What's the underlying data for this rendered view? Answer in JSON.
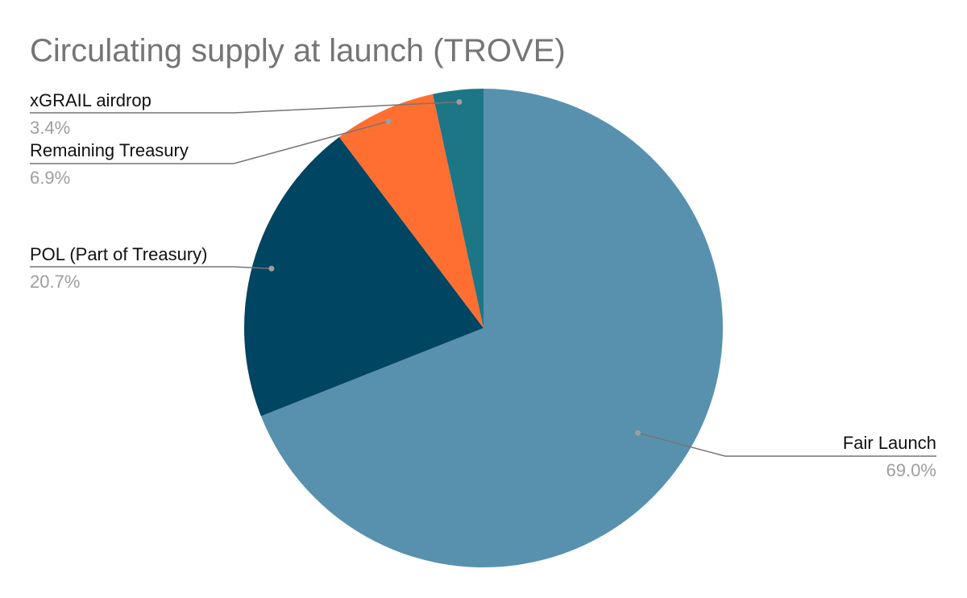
{
  "chart_data": {
    "type": "pie",
    "title": "Circulating supply at launch (TROVE)",
    "slices": [
      {
        "label": "Fair Launch",
        "value": 69.0,
        "pct_label": "69.0%",
        "color": "#5891AD"
      },
      {
        "label": "POL (Part of Treasury)",
        "value": 20.7,
        "pct_label": "20.7%",
        "color": "#004561"
      },
      {
        "label": "Remaining Treasury",
        "value": 6.9,
        "pct_label": "6.9%",
        "color": "#FF6F31"
      },
      {
        "label": "xGRAIL airdrop",
        "value": 3.4,
        "pct_label": "3.4%",
        "color": "#1C7685"
      }
    ],
    "start_angle_deg": 0,
    "direction": "clockwise",
    "leader_line_color": "#757575"
  }
}
